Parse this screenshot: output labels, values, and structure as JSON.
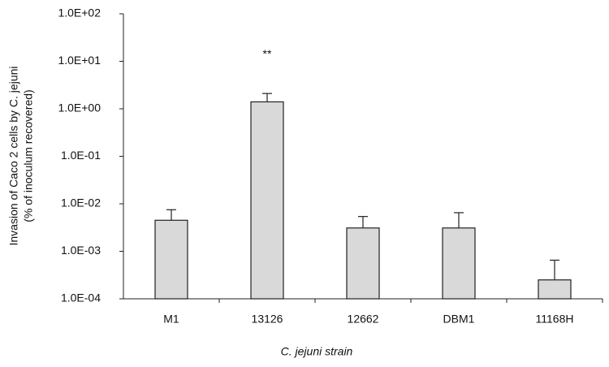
{
  "chart_data": {
    "type": "bar",
    "y_label_lines": [
      "Invasion of Caco 2 cells by C. jejuni",
      "(% of inoculum recovered)"
    ],
    "x_label": "C. jejuni strain",
    "categories": [
      "M1",
      "13126",
      "12662",
      "DBM1",
      "11168H"
    ],
    "values": [
      0.0045,
      1.4,
      0.0031,
      0.0031,
      0.00025
    ],
    "errors": [
      0.003,
      0.7,
      0.0023,
      0.0034,
      0.0004
    ],
    "annotations": [
      {
        "category": 1,
        "text": "**"
      }
    ],
    "color": "#d9d9d9",
    "log_scale": true,
    "ylim": [
      0.0001,
      100
    ],
    "yticks": [
      {
        "value": 0.0001,
        "label": "1.0E-04"
      },
      {
        "value": 0.001,
        "label": "1.0E-03"
      },
      {
        "value": 0.01,
        "label": "1.0E-02"
      },
      {
        "value": 0.1,
        "label": "1.0E-01"
      },
      {
        "value": 1,
        "label": "1.0E+00"
      },
      {
        "value": 10,
        "label": "1.0E+01"
      },
      {
        "value": 100,
        "label": "1.0E+02"
      }
    ],
    "grid": false
  }
}
